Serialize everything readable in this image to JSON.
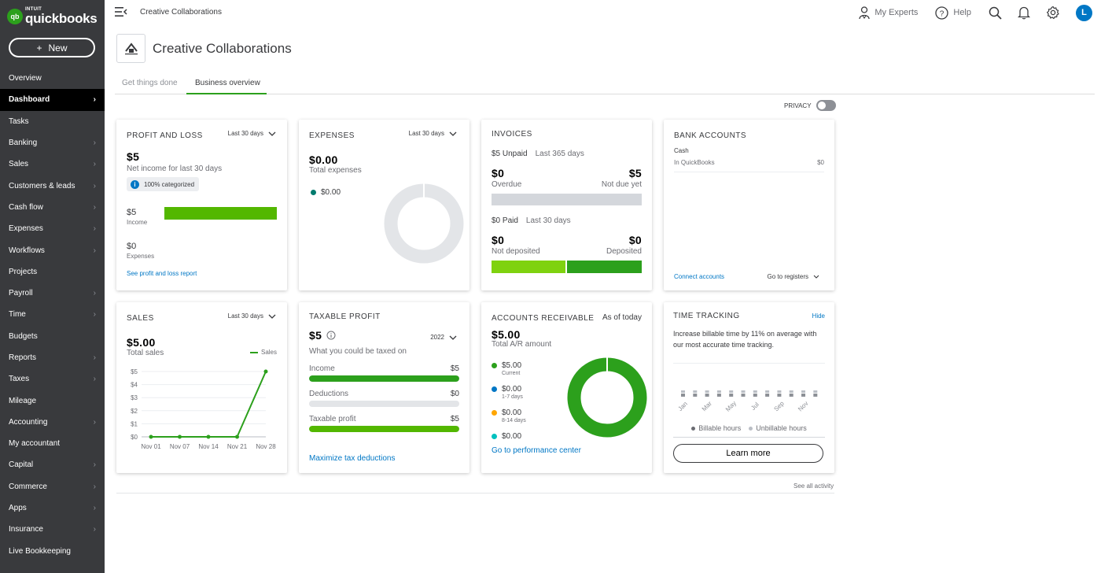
{
  "app": {
    "intuit": "INTUIT",
    "name": "quickbooks"
  },
  "sidebar": {
    "new_label": "New",
    "items": [
      {
        "label": "Overview",
        "chevron": false,
        "active": false
      },
      {
        "label": "Dashboard",
        "chevron": true,
        "active": true
      },
      {
        "label": "Tasks",
        "chevron": false,
        "active": false
      },
      {
        "label": "Banking",
        "chevron": true,
        "active": false
      },
      {
        "label": "Sales",
        "chevron": true,
        "active": false
      },
      {
        "label": "Customers & leads",
        "chevron": true,
        "active": false
      },
      {
        "label": "Cash flow",
        "chevron": true,
        "active": false
      },
      {
        "label": "Expenses",
        "chevron": true,
        "active": false
      },
      {
        "label": "Workflows",
        "chevron": true,
        "active": false
      },
      {
        "label": "Projects",
        "chevron": false,
        "active": false
      },
      {
        "label": "Payroll",
        "chevron": true,
        "active": false
      },
      {
        "label": "Time",
        "chevron": true,
        "active": false
      },
      {
        "label": "Budgets",
        "chevron": false,
        "active": false
      },
      {
        "label": "Reports",
        "chevron": true,
        "active": false
      },
      {
        "label": "Taxes",
        "chevron": true,
        "active": false
      },
      {
        "label": "Mileage",
        "chevron": false,
        "active": false
      },
      {
        "label": "Accounting",
        "chevron": true,
        "active": false
      },
      {
        "label": "My accountant",
        "chevron": false,
        "active": false
      },
      {
        "label": "Capital",
        "chevron": true,
        "active": false
      },
      {
        "label": "Commerce",
        "chevron": true,
        "active": false
      },
      {
        "label": "Apps",
        "chevron": true,
        "active": false
      },
      {
        "label": "Insurance",
        "chevron": true,
        "active": false
      },
      {
        "label": "Live Bookkeeping",
        "chevron": false,
        "active": false
      }
    ]
  },
  "topbar": {
    "company": "Creative Collaborations",
    "my_experts": "My Experts",
    "help": "Help",
    "avatar_initial": "L"
  },
  "header": {
    "company_title": "Creative Collaborations",
    "tabs": [
      "Get things done",
      "Business overview"
    ],
    "privacy_label": "PRIVACY"
  },
  "profit_loss": {
    "title": "PROFIT AND LOSS",
    "period": "Last 30 days",
    "net_value": "$5",
    "net_label": "Net income for last 30 days",
    "categorized": "100% categorized",
    "income_value": "$5",
    "income_label": "Income",
    "income_fraction": 1,
    "expenses_value": "$0",
    "expenses_label": "Expenses",
    "link": "See profit and loss report"
  },
  "expenses": {
    "title": "EXPENSES",
    "period": "Last 30 days",
    "total_value": "$0.00",
    "total_label": "Total expenses",
    "legend_value": "$0.00"
  },
  "invoices": {
    "title": "INVOICES",
    "unpaid_label": "$5 Unpaid",
    "unpaid_period": "Last 365 days",
    "overdue_value": "$0",
    "overdue_label": "Overdue",
    "not_due_value": "$5",
    "not_due_label": "Not due yet",
    "paid_label": "$0 Paid",
    "paid_period": "Last 30 days",
    "not_deposited_value": "$0",
    "not_deposited_label": "Not deposited",
    "deposited_value": "$0",
    "deposited_label": "Deposited"
  },
  "bank_accounts": {
    "title": "BANK ACCOUNTS",
    "account_name": "Cash",
    "account_source": "In QuickBooks",
    "account_balance": "$0",
    "connect_link": "Connect accounts",
    "registers_label": "Go to registers"
  },
  "sales": {
    "title": "SALES",
    "period": "Last 30 days",
    "total_value": "$5.00",
    "total_label": "Total sales",
    "legend": "Sales"
  },
  "taxable_profit": {
    "title": "TAXABLE PROFIT",
    "value": "$5",
    "year": "2022",
    "subtitle": "What you could be taxed on",
    "rows": [
      {
        "label": "Income",
        "value": "$5",
        "fraction": 1,
        "color": "#2ca01c"
      },
      {
        "label": "Deductions",
        "value": "$0",
        "fraction": 0,
        "color": "#2ca01c"
      },
      {
        "label": "Taxable profit",
        "value": "$5",
        "fraction": 1,
        "color": "#53b700"
      }
    ],
    "link": "Maximize tax deductions"
  },
  "accounts_receivable": {
    "title": "ACCOUNTS RECEIVABLE",
    "as_of": "As of today",
    "total_value": "$5.00",
    "total_label": "Total A/R amount",
    "items": [
      {
        "value": "$5.00",
        "label": "Current",
        "color": "#2ca01c"
      },
      {
        "value": "$0.00",
        "label": "1-7 days",
        "color": "#0077c5"
      },
      {
        "value": "$0.00",
        "label": "8-14 days",
        "color": "#ffa600"
      },
      {
        "value": "$0.00",
        "label": "",
        "color": "#00c1bf"
      }
    ],
    "link": "Go to performance center"
  },
  "time_tracking": {
    "title": "TIME TRACKING",
    "hide": "Hide",
    "description": "Increase billable time by 11% on average with our most accurate time tracking.",
    "months": [
      "Jan",
      "Mar",
      "May",
      "Jul",
      "Sep",
      "Nov"
    ],
    "legend_billable": "Billable hours",
    "legend_unbillable": "Unbillable hours",
    "learn_more": "Learn more"
  },
  "footer": {
    "see_all": "See all activity"
  },
  "colors": {
    "accent": "#2ca01c",
    "link": "#0077c5",
    "sidebar": "#393a3d",
    "donut_empty": "#e3e5e8"
  },
  "chart_data": [
    {
      "type": "line",
      "x": [
        "Nov 01",
        "Nov 07",
        "Nov 14",
        "Nov 21",
        "Nov 28"
      ],
      "series": [
        {
          "name": "Sales",
          "values": [
            0,
            0,
            0,
            0,
            5
          ]
        }
      ],
      "yticks": [
        "$0",
        "$1",
        "$2",
        "$3",
        "$4",
        "$5"
      ],
      "ylim": [
        0,
        5
      ],
      "grid": true
    },
    {
      "type": "pie",
      "categories": [
        "Expenses"
      ],
      "values": [
        0
      ]
    },
    {
      "type": "pie",
      "categories": [
        "Current",
        "1-7 days",
        "8-14 days",
        ""
      ],
      "values": [
        5,
        0,
        0,
        0
      ]
    }
  ]
}
